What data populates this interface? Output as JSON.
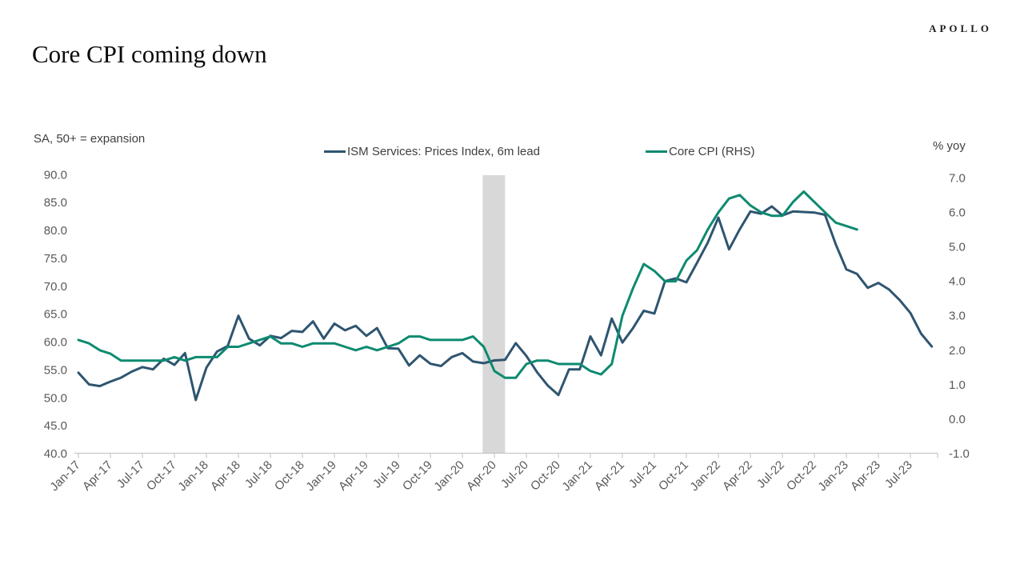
{
  "brand": {
    "logo": "APOLLO"
  },
  "title": "Core CPI coming down",
  "chart_data": {
    "type": "line",
    "title": "Core CPI coming down",
    "x_start": "Jan-17",
    "x_interval": "monthly",
    "grid": "none",
    "legend_position": "top-center",
    "x_tick_labels": [
      "Jan-17",
      "Apr-17",
      "Jul-17",
      "Oct-17",
      "Jan-18",
      "Apr-18",
      "Jul-18",
      "Oct-18",
      "Jan-19",
      "Apr-19",
      "Jul-19",
      "Oct-19",
      "Jan-20",
      "Apr-20",
      "Jul-20",
      "Oct-20",
      "Jan-21",
      "Apr-21",
      "Jul-21",
      "Oct-21",
      "Jan-22",
      "Apr-22",
      "Jul-22",
      "Oct-22",
      "Jan-23",
      "Apr-23",
      "Jul-23"
    ],
    "left_axis": {
      "label": "SA, 50+ = expansion",
      "range": [
        40,
        90
      ],
      "ticks": [
        "90.0",
        "85.0",
        "80.0",
        "75.0",
        "70.0",
        "65.0",
        "60.0",
        "55.0",
        "50.0",
        "45.0",
        "40.0"
      ]
    },
    "right_axis": {
      "label": "% yoy",
      "range": [
        -1,
        7
      ],
      "ticks": [
        "7.0",
        "6.0",
        "5.0",
        "4.0",
        "3.0",
        "2.0",
        "1.0",
        "0.0",
        "-1.0"
      ]
    },
    "recession_band": {
      "start_month_index": 37.9,
      "end_month_index": 40,
      "color": "#D8D8D8"
    },
    "axis_color": "#BFBFBF",
    "series": [
      {
        "name": "ISM Services: Prices Index, 6m lead",
        "axis": "left",
        "color": "#2F5570",
        "start": "Jan-17",
        "end": "Sep-23",
        "values": [
          54.5,
          52.4,
          52.1,
          52.9,
          53.6,
          54.7,
          55.5,
          55.1,
          57.0,
          55.9,
          58.0,
          49.6,
          55.4,
          58.3,
          59.3,
          64.7,
          60.6,
          59.4,
          61.1,
          60.7,
          62.0,
          61.8,
          63.7,
          60.6,
          63.3,
          62.1,
          62.9,
          61.1,
          62.5,
          58.9,
          58.8,
          55.8,
          57.6,
          56.1,
          55.7,
          57.3,
          58.0,
          56.5,
          56.2,
          56.7,
          56.8,
          59.8,
          57.5,
          54.6,
          52.2,
          50.5,
          55.1,
          55.1,
          61.0,
          57.6,
          64.2,
          59.9,
          62.5,
          65.6,
          65.1,
          70.9,
          71.4,
          70.7,
          74.2,
          77.8,
          82.3,
          76.6,
          80.2,
          83.4,
          83.0,
          84.3,
          82.7,
          83.4,
          83.3,
          83.2,
          82.8,
          77.5,
          73.0,
          72.2,
          69.7,
          70.6,
          69.4,
          67.5,
          65.2,
          61.5,
          59.2
        ]
      },
      {
        "name": "Core CPI (RHS)",
        "axis": "right",
        "color": "#0E8A70",
        "start": "Jan-17",
        "end": "Feb-23",
        "values": [
          2.3,
          2.2,
          2.0,
          1.9,
          1.7,
          1.7,
          1.7,
          1.7,
          1.7,
          1.8,
          1.7,
          1.8,
          1.8,
          1.8,
          2.1,
          2.1,
          2.2,
          2.3,
          2.4,
          2.2,
          2.2,
          2.1,
          2.2,
          2.2,
          2.2,
          2.1,
          2.0,
          2.1,
          2.0,
          2.1,
          2.2,
          2.4,
          2.4,
          2.3,
          2.3,
          2.3,
          2.3,
          2.4,
          2.1,
          1.4,
          1.2,
          1.2,
          1.6,
          1.7,
          1.7,
          1.6,
          1.6,
          1.6,
          1.4,
          1.3,
          1.6,
          3.0,
          3.8,
          4.5,
          4.3,
          4.0,
          4.0,
          4.6,
          4.9,
          5.5,
          6.0,
          6.4,
          6.5,
          6.2,
          6.0,
          5.9,
          5.9,
          6.3,
          6.6,
          6.3,
          6.0,
          5.7,
          5.6,
          5.5
        ]
      }
    ]
  }
}
